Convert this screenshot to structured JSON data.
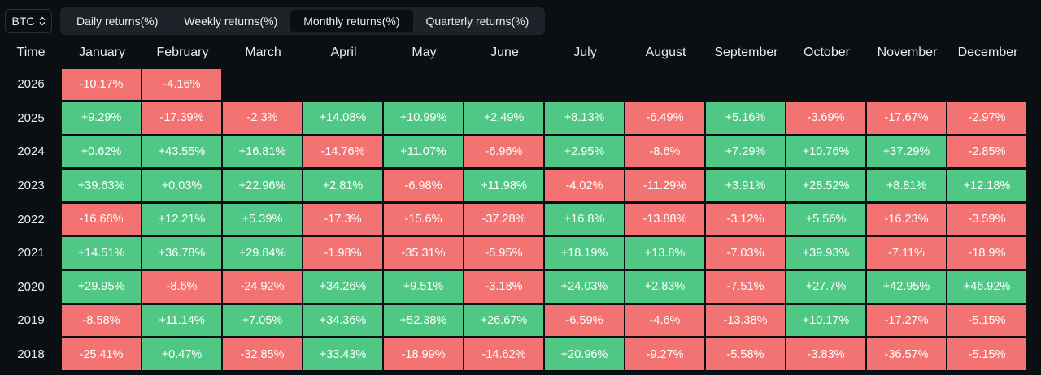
{
  "asset_selector": {
    "value": "BTC",
    "icon": "chevron-updown-icon"
  },
  "tabs": [
    {
      "label": "Daily returns(%)",
      "active": false
    },
    {
      "label": "Weekly returns(%)",
      "active": false
    },
    {
      "label": "Monthly returns(%)",
      "active": true
    },
    {
      "label": "Quarterly returns(%)",
      "active": false
    }
  ],
  "colors": {
    "positive": "#50c885",
    "negative": "#f37272",
    "background": "#0b0e13"
  },
  "table": {
    "time_header": "Time",
    "months": [
      "January",
      "February",
      "March",
      "April",
      "May",
      "June",
      "July",
      "August",
      "September",
      "October",
      "November",
      "December"
    ],
    "rows": [
      {
        "year": "2026",
        "values": [
          "-10.17%",
          "-4.16%"
        ]
      },
      {
        "year": "2025",
        "values": [
          "+9.29%",
          "-17.39%",
          "-2.3%",
          "+14.08%",
          "+10.99%",
          "+2.49%",
          "+8.13%",
          "-6.49%",
          "+5.16%",
          "-3.69%",
          "-17.67%",
          "-2.97%"
        ]
      },
      {
        "year": "2024",
        "values": [
          "+0.62%",
          "+43.55%",
          "+16.81%",
          "-14.76%",
          "+11.07%",
          "-6.96%",
          "+2.95%",
          "-8.6%",
          "+7.29%",
          "+10.76%",
          "+37.29%",
          "-2.85%"
        ]
      },
      {
        "year": "2023",
        "values": [
          "+39.63%",
          "+0.03%",
          "+22.96%",
          "+2.81%",
          "-6.98%",
          "+11.98%",
          "-4.02%",
          "-11.29%",
          "+3.91%",
          "+28.52%",
          "+8.81%",
          "+12.18%"
        ]
      },
      {
        "year": "2022",
        "values": [
          "-16.68%",
          "+12.21%",
          "+5.39%",
          "-17.3%",
          "-15.6%",
          "-37.28%",
          "+16.8%",
          "-13.88%",
          "-3.12%",
          "+5.56%",
          "-16.23%",
          "-3.59%"
        ]
      },
      {
        "year": "2021",
        "values": [
          "+14.51%",
          "+36.78%",
          "+29.84%",
          "-1.98%",
          "-35.31%",
          "-5.95%",
          "+18.19%",
          "+13.8%",
          "-7.03%",
          "+39.93%",
          "-7.11%",
          "-18.9%"
        ]
      },
      {
        "year": "2020",
        "values": [
          "+29.95%",
          "-8.6%",
          "-24.92%",
          "+34.26%",
          "+9.51%",
          "-3.18%",
          "+24.03%",
          "+2.83%",
          "-7.51%",
          "+27.7%",
          "+42.95%",
          "+46.92%"
        ]
      },
      {
        "year": "2019",
        "values": [
          "-8.58%",
          "+11.14%",
          "+7.05%",
          "+34.36%",
          "+52.38%",
          "+26.67%",
          "-6.59%",
          "-4.6%",
          "-13.38%",
          "+10.17%",
          "-17.27%",
          "-5.15%"
        ]
      },
      {
        "year": "2018",
        "values": [
          "-25.41%",
          "+0.47%",
          "-32.85%",
          "+33.43%",
          "-18.99%",
          "-14.62%",
          "+20.96%",
          "-9.27%",
          "-5.58%",
          "-3.83%",
          "-36.57%",
          "-5.15%"
        ]
      }
    ]
  }
}
